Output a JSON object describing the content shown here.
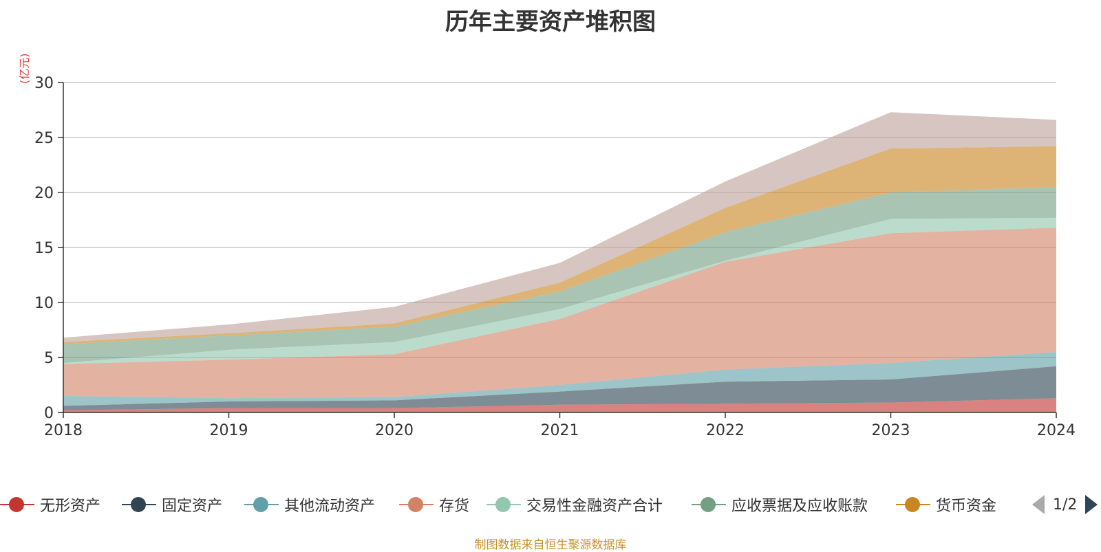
{
  "chart_data": {
    "type": "area",
    "stacked": true,
    "title": "历年主要资产堆积图",
    "unit_label": "(亿元)",
    "categories": [
      "2018",
      "2019",
      "2020",
      "2021",
      "2022",
      "2023",
      "2024"
    ],
    "ylim": [
      0,
      30
    ],
    "yticks": [
      0,
      5,
      10,
      15,
      20,
      25,
      30
    ],
    "grid": true,
    "legend_position": "bottom",
    "series": [
      {
        "name": "无形资产",
        "color": "#c23531",
        "values": [
          0.2,
          0.4,
          0.4,
          0.7,
          0.8,
          0.9,
          1.3
        ]
      },
      {
        "name": "固定资产",
        "color": "#2f4554",
        "values": [
          0.4,
          0.6,
          0.7,
          1.2,
          2.0,
          2.1,
          2.9
        ]
      },
      {
        "name": "其他流动资产",
        "color": "#61a0a8",
        "values": [
          0.9,
          0.3,
          0.3,
          0.6,
          1.1,
          1.5,
          1.3
        ]
      },
      {
        "name": "存货",
        "color": "#d48265",
        "values": [
          2.9,
          3.5,
          3.9,
          6.0,
          9.8,
          11.8,
          11.3
        ]
      },
      {
        "name": "交易性金融资产合计",
        "color": "#91c7ae",
        "values": [
          0.1,
          0.9,
          1.1,
          0.9,
          0.1,
          1.3,
          0.9
        ]
      },
      {
        "name": "应收票据及应收账款",
        "color": "#749f83",
        "values": [
          1.7,
          1.3,
          1.4,
          1.6,
          2.6,
          2.4,
          2.8
        ]
      },
      {
        "name": "货币资金",
        "color": "#ca8622",
        "values": [
          0.2,
          0.2,
          0.3,
          0.8,
          2.2,
          4.0,
          3.7
        ]
      },
      {
        "name": "",
        "color": "#bda29a",
        "values": [
          0.4,
          0.8,
          1.5,
          1.8,
          2.4,
          3.3,
          2.4
        ]
      }
    ]
  },
  "legend": {
    "items": [
      {
        "label": "无形资产",
        "color": "#c23531"
      },
      {
        "label": "固定资产",
        "color": "#2f4554"
      },
      {
        "label": "其他流动资产",
        "color": "#61a0a8"
      },
      {
        "label": "存货",
        "color": "#d48265"
      },
      {
        "label": "交易性金融资产合计",
        "color": "#91c7ae"
      },
      {
        "label": "应收票据及应收账款",
        "color": "#749f83"
      },
      {
        "label": "货币资金",
        "color": "#ca8622"
      }
    ],
    "page_indicator": "1/2"
  },
  "source_note": "制图数据来自恒生聚源数据库"
}
